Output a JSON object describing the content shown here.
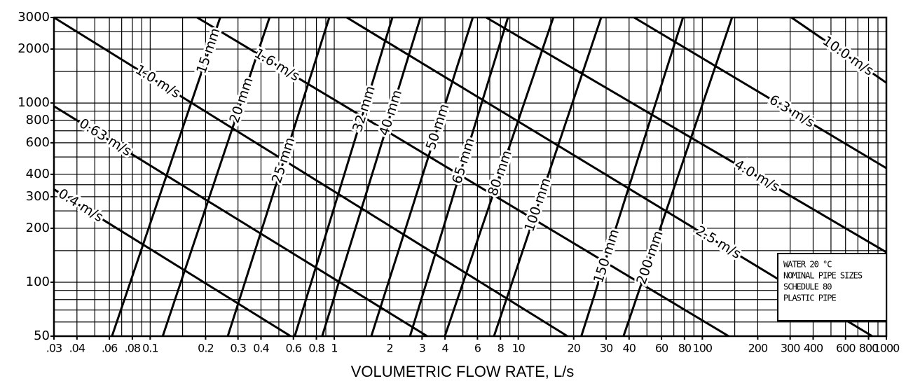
{
  "chart_data": {
    "type": "line",
    "x_label": "VOLUMETRIC FLOW RATE, L/s",
    "xscale": "log",
    "yscale": "log",
    "xlim": [
      0.03,
      1000
    ],
    "ylim": [
      50,
      3000
    ],
    "xticks": [
      {
        "value": 0.03,
        "label": ".03"
      },
      {
        "value": 0.04,
        "label": ".04"
      },
      {
        "value": 0.06,
        "label": ".06"
      },
      {
        "value": 0.08,
        "label": ".08"
      },
      0.1,
      0.2,
      0.3,
      0.4,
      0.6,
      0.8,
      1,
      2,
      3,
      4,
      6,
      8,
      10,
      20,
      30,
      40,
      60,
      80,
      100,
      200,
      300,
      400,
      600,
      800,
      1000
    ],
    "yticks": [
      50,
      100,
      200,
      300,
      400,
      600,
      800,
      1000,
      2000,
      3000
    ],
    "xgrid": [
      0.03,
      0.04,
      0.05,
      0.06,
      0.07,
      0.08,
      0.09,
      0.1,
      0.15,
      0.2,
      0.3,
      0.4,
      0.5,
      0.6,
      0.7,
      0.8,
      0.9,
      1,
      1.5,
      2,
      3,
      4,
      5,
      6,
      7,
      8,
      9,
      10,
      15,
      20,
      30,
      40,
      50,
      60,
      70,
      80,
      90,
      100,
      150,
      200,
      300,
      400,
      500,
      600,
      700,
      800,
      900,
      1000
    ],
    "ygrid": [
      50,
      60,
      70,
      80,
      90,
      100,
      150,
      200,
      250,
      300,
      350,
      400,
      500,
      600,
      700,
      800,
      900,
      1000,
      1500,
      2000,
      2500,
      3000
    ],
    "grid": true,
    "color": "#000000",
    "series": [
      {
        "name": "0.4 m/s",
        "x": [
          0.03,
          0.58
        ],
        "values": [
          330,
          50
        ]
      },
      {
        "name": "0.63 m/s",
        "x": [
          0.03,
          3.2
        ],
        "values": [
          960,
          50
        ]
      },
      {
        "name": "1.0 m/s",
        "x": [
          0.03,
          18.5
        ],
        "values": [
          3000,
          50
        ]
      },
      {
        "name": "1.6 m/s",
        "x": [
          0.18,
          139
        ],
        "values": [
          3000,
          50
        ]
      },
      {
        "name": "2.5 m/s",
        "x": [
          1.17,
          838
        ],
        "values": [
          3000,
          50
        ]
      },
      {
        "name": "4.0 m/s",
        "x": [
          6.7,
          1000
        ],
        "values": [
          3000,
          147
        ]
      },
      {
        "name": "6.3 m/s",
        "x": [
          42.6,
          1000
        ],
        "values": [
          3000,
          433
        ]
      },
      {
        "name": "10.0 m/s",
        "x": [
          305,
          1000
        ],
        "values": [
          3000,
          1297
        ]
      },
      {
        "name": "15 mm",
        "x": [
          0.062,
          0.24
        ],
        "values": [
          50,
          3000
        ]
      },
      {
        "name": "20 mm",
        "x": [
          0.117,
          0.445
        ],
        "values": [
          50,
          3000
        ]
      },
      {
        "name": "25 mm",
        "x": [
          0.264,
          0.94
        ],
        "values": [
          50,
          3000
        ]
      },
      {
        "name": "32 mm",
        "x": [
          0.61,
          2.07
        ],
        "values": [
          50,
          3000
        ]
      },
      {
        "name": "40 mm",
        "x": [
          0.86,
          2.94
        ],
        "values": [
          50,
          3000
        ]
      },
      {
        "name": "50 mm",
        "x": [
          1.59,
          5.66
        ],
        "values": [
          50,
          3000
        ]
      },
      {
        "name": "65 mm",
        "x": [
          2.58,
          8.79
        ],
        "values": [
          50,
          3000
        ]
      },
      {
        "name": "80 mm",
        "x": [
          3.99,
          15.5
        ],
        "values": [
          50,
          3000
        ]
      },
      {
        "name": "100 mm",
        "x": [
          7.38,
          28.2
        ],
        "values": [
          50,
          3000
        ]
      },
      {
        "name": "150 mm",
        "x": [
          22.0,
          78.5
        ],
        "values": [
          50,
          3000
        ]
      },
      {
        "name": "200 mm",
        "x": [
          37.3,
          145
        ],
        "values": [
          50,
          3000
        ]
      }
    ],
    "annotation": [
      "WATER 20 °C",
      "NOMINAL PIPE SIZES",
      "SCHEDULE 80",
      "PLASTIC PIPE"
    ]
  }
}
